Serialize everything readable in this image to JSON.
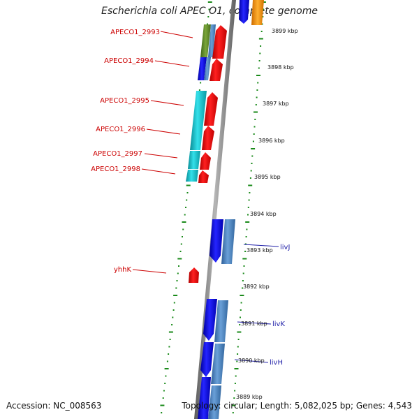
{
  "title": "Escherichia coli APEC O1, complete genome",
  "footer": {
    "accession": "Accession: NC_008563",
    "summary": "Topology: circular; Length: 5,082,025 bp; Genes: 4,543"
  },
  "colors": {
    "red": "#ee1111",
    "blue": "#1515e0",
    "steel": "#4a86c6",
    "cyan": "#19c2cc",
    "olive": "#5f8a28",
    "orange": "#ff9a00",
    "backbone": "#8a8a8a",
    "dots": "#1a8a1a",
    "label_red": "#cc0000",
    "label_blue": "#1f1fa8"
  },
  "gene_labels": [
    {
      "text": "APECO1_2993",
      "color": "red"
    },
    {
      "text": "APECO1_2994",
      "color": "red"
    },
    {
      "text": "APECO1_2995",
      "color": "red"
    },
    {
      "text": "APECO1_2996",
      "color": "red"
    },
    {
      "text": "APECO1_2997",
      "color": "red"
    },
    {
      "text": "APECO1_2998",
      "color": "red"
    },
    {
      "text": "yhhK",
      "color": "red"
    },
    {
      "text": "livJ",
      "color": "blue"
    },
    {
      "text": "livK",
      "color": "blue"
    },
    {
      "text": "livH",
      "color": "blue"
    }
  ],
  "kbp_ticks": [
    "3899 kbp",
    "3898 kbp",
    "3897 kbp",
    "3896 kbp",
    "3895 kbp",
    "3894 kbp",
    "3893 kbp",
    "3892 kbp",
    "3891 kbp",
    "3890 kbp",
    "3889 kbp"
  ]
}
